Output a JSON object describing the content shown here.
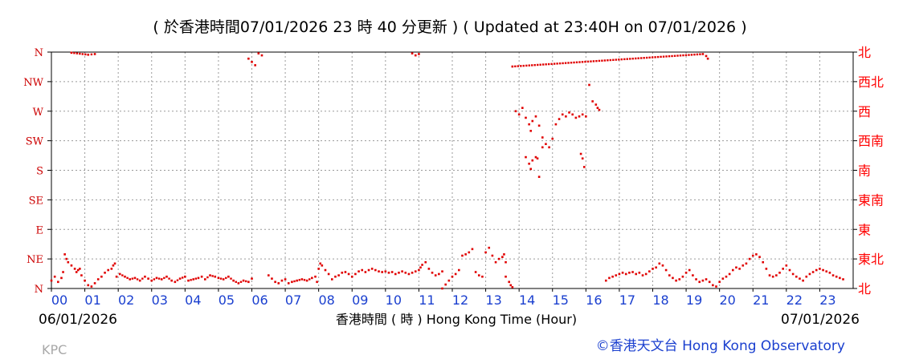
{
  "header": {
    "title": "( 於香港時間07/01/2026 23 時 40 分更新 ) ( Updated at 23:40H on 07/01/2026 )"
  },
  "footer": {
    "start_date": "06/01/2026",
    "end_date": "07/01/2026",
    "xlabel": "香港時間 ( 時 ) Hong Kong Time (Hour)",
    "station": "KPC",
    "credit": "©香港天文台 Hong Kong Observatory"
  },
  "colors": {
    "title": "#000000",
    "data": "#e00000",
    "left_axis_labels": "#cc0000",
    "right_axis_labels": "#ff0000",
    "x_tick_labels": "#1a3fcf",
    "grid": "#9a9a9a",
    "credit": "#1a3fcf",
    "station": "#a8a8a8"
  },
  "chart_data": {
    "type": "scatter",
    "title": "( 於香港時間07/01/2026 23 時 40 分更新 ) ( Updated at 23:40H on 07/01/2026 )",
    "xlabel": "香港時間 ( 時 ) Hong Kong Time (Hour)",
    "ylabel": "",
    "x_unit": "hour of day (Hong Kong Time), 06/01/2026 00:00 to 07/01/2026 24:00",
    "y_unit": "wind direction, degrees from north",
    "xlim": [
      0,
      24
    ],
    "ylim": [
      0,
      360
    ],
    "grid": true,
    "legend": "none",
    "x_ticks": [
      "00",
      "01",
      "02",
      "03",
      "04",
      "05",
      "06",
      "07",
      "08",
      "09",
      "10",
      "11",
      "12",
      "13",
      "14",
      "15",
      "16",
      "17",
      "18",
      "19",
      "20",
      "21",
      "22",
      "23"
    ],
    "y_ticks_left": [
      "N",
      "NE",
      "E",
      "SE",
      "S",
      "SW",
      "W",
      "NW",
      "N"
    ],
    "y_ticks_right": [
      "北",
      "東北",
      "東",
      "東南",
      "南",
      "西南",
      "西",
      "西北",
      "北"
    ],
    "series": [
      {
        "segments": [
          [
            [
              0.0,
              12
            ],
            [
              0.1,
              18
            ],
            [
              0.2,
              10
            ],
            [
              0.3,
              16
            ],
            [
              0.35,
              25
            ],
            [
              0.4,
              52
            ],
            [
              0.45,
              45
            ],
            [
              0.5,
              40
            ],
            [
              0.6,
              35
            ],
            [
              0.7,
              30
            ],
            [
              0.75,
              25
            ],
            [
              0.8,
              28
            ],
            [
              0.85,
              30
            ],
            [
              0.9,
              20
            ],
            [
              1.0,
              12
            ],
            [
              1.1,
              5
            ],
            [
              1.2,
              3
            ],
            [
              1.3,
              8
            ],
            [
              1.4,
              14
            ],
            [
              1.5,
              18
            ],
            [
              1.6,
              24
            ],
            [
              1.7,
              28
            ],
            [
              1.8,
              30
            ],
            [
              1.85,
              35
            ],
            [
              1.9,
              38
            ]
          ],
          [
            [
              1.95,
              18
            ],
            [
              2.05,
              22
            ],
            [
              2.2,
              18
            ],
            [
              2.35,
              14
            ],
            [
              2.5,
              16
            ],
            [
              2.65,
              12
            ],
            [
              2.8,
              18
            ],
            [
              2.9,
              15
            ],
            [
              3.0,
              12
            ],
            [
              3.15,
              16
            ],
            [
              3.3,
              14
            ],
            [
              3.45,
              18
            ],
            [
              3.6,
              12
            ],
            [
              3.7,
              10
            ],
            [
              3.85,
              15
            ],
            [
              4.0,
              18
            ],
            [
              4.1,
              12
            ],
            [
              4.25,
              14
            ],
            [
              4.4,
              16
            ],
            [
              4.5,
              18
            ],
            [
              4.6,
              14
            ],
            [
              4.75,
              20
            ],
            [
              4.9,
              18
            ],
            [
              5.0,
              16
            ],
            [
              5.15,
              14
            ],
            [
              5.3,
              18
            ],
            [
              5.45,
              12
            ],
            [
              5.6,
              8
            ],
            [
              5.75,
              12
            ],
            [
              5.9,
              10
            ],
            [
              6.0,
              15
            ]
          ],
          [
            [
              6.5,
              20
            ],
            [
              6.6,
              15
            ],
            [
              6.7,
              10
            ],
            [
              6.8,
              8
            ],
            [
              6.9,
              12
            ],
            [
              7.0,
              14
            ],
            [
              7.1,
              8
            ],
            [
              7.2,
              10
            ],
            [
              7.35,
              12
            ],
            [
              7.5,
              14
            ],
            [
              7.65,
              12
            ],
            [
              7.8,
              16
            ],
            [
              7.9,
              18
            ],
            [
              7.95,
              10
            ],
            [
              8.0,
              30
            ],
            [
              8.05,
              38
            ],
            [
              8.1,
              35
            ],
            [
              8.2,
              28
            ],
            [
              8.3,
              22
            ],
            [
              8.4,
              14
            ],
            [
              8.5,
              18
            ],
            [
              8.6,
              20
            ],
            [
              8.7,
              24
            ],
            [
              8.8,
              25
            ],
            [
              8.9,
              22
            ],
            [
              9.0,
              18
            ],
            [
              9.1,
              22
            ],
            [
              9.2,
              26
            ],
            [
              9.3,
              28
            ],
            [
              9.4,
              25
            ],
            [
              9.5,
              28
            ],
            [
              9.6,
              30
            ],
            [
              9.7,
              28
            ],
            [
              9.8,
              26
            ],
            [
              9.9,
              25
            ],
            [
              10.0,
              26
            ],
            [
              10.1,
              24
            ],
            [
              10.2,
              25
            ],
            [
              10.3,
              22
            ],
            [
              10.4,
              24
            ],
            [
              10.5,
              26
            ],
            [
              10.6,
              24
            ],
            [
              10.7,
              22
            ],
            [
              10.8,
              24
            ],
            [
              10.9,
              26
            ],
            [
              11.0,
              28
            ],
            [
              11.05,
              32
            ],
            [
              11.1,
              36
            ],
            [
              11.2,
              40
            ],
            [
              11.3,
              30
            ],
            [
              11.4,
              24
            ],
            [
              11.5,
              20
            ],
            [
              11.6,
              22
            ],
            [
              11.7,
              26
            ]
          ],
          [
            [
              11.7,
              0
            ],
            [
              11.8,
              6
            ],
            [
              11.9,
              12
            ],
            [
              12.0,
              18
            ],
            [
              12.1,
              22
            ],
            [
              12.2,
              28
            ],
            [
              12.3,
              50
            ],
            [
              12.4,
              52
            ],
            [
              12.5,
              55
            ],
            [
              12.6,
              60
            ]
          ],
          [
            [
              12.7,
              25
            ],
            [
              12.8,
              20
            ],
            [
              12.9,
              18
            ],
            [
              13.0,
              55
            ],
            [
              13.1,
              62
            ],
            [
              13.2,
              50
            ],
            [
              13.3,
              40
            ],
            [
              13.4,
              45
            ],
            [
              13.5,
              48
            ],
            [
              13.55,
              52
            ],
            [
              13.6,
              40
            ]
          ],
          [
            [
              13.6,
              18
            ],
            [
              13.7,
              10
            ],
            [
              13.75,
              5
            ],
            [
              13.8,
              2
            ]
          ],
          [
            [
              16.6,
              12
            ],
            [
              16.7,
              16
            ],
            [
              16.8,
              18
            ],
            [
              16.9,
              20
            ],
            [
              17.0,
              22
            ],
            [
              17.1,
              24
            ],
            [
              17.2,
              22
            ],
            [
              17.3,
              24
            ],
            [
              17.4,
              25
            ],
            [
              17.5,
              22
            ],
            [
              17.6,
              24
            ],
            [
              17.7,
              20
            ],
            [
              17.8,
              22
            ],
            [
              17.9,
              26
            ],
            [
              18.0,
              30
            ],
            [
              18.1,
              32
            ],
            [
              18.2,
              38
            ],
            [
              18.3,
              35
            ],
            [
              18.4,
              28
            ],
            [
              18.5,
              20
            ],
            [
              18.6,
              16
            ],
            [
              18.7,
              12
            ],
            [
              18.8,
              14
            ],
            [
              18.9,
              18
            ],
            [
              19.0,
              24
            ],
            [
              19.1,
              28
            ],
            [
              19.2,
              20
            ],
            [
              19.3,
              14
            ],
            [
              19.4,
              10
            ],
            [
              19.5,
              12
            ],
            [
              19.6,
              14
            ],
            [
              19.7,
              10
            ],
            [
              19.8,
              5
            ],
            [
              19.9,
              3
            ],
            [
              20.0,
              10
            ],
            [
              20.1,
              15
            ],
            [
              20.2,
              18
            ],
            [
              20.3,
              22
            ],
            [
              20.4,
              28
            ],
            [
              20.5,
              32
            ],
            [
              20.6,
              30
            ],
            [
              20.7,
              35
            ],
            [
              20.8,
              38
            ],
            [
              20.9,
              45
            ],
            [
              21.0,
              50
            ],
            [
              21.1,
              52
            ],
            [
              21.2,
              48
            ],
            [
              21.3,
              40
            ],
            [
              21.4,
              30
            ],
            [
              21.5,
              20
            ],
            [
              21.6,
              18
            ],
            [
              21.7,
              20
            ],
            [
              21.8,
              24
            ],
            [
              21.9,
              30
            ],
            [
              22.0,
              35
            ],
            [
              22.1,
              28
            ],
            [
              22.2,
              22
            ],
            [
              22.3,
              18
            ],
            [
              22.4,
              15
            ],
            [
              22.5,
              12
            ],
            [
              22.6,
              18
            ],
            [
              22.7,
              22
            ],
            [
              22.8,
              25
            ],
            [
              22.9,
              28
            ],
            [
              23.0,
              30
            ],
            [
              23.1,
              28
            ],
            [
              23.2,
              26
            ],
            [
              23.3,
              24
            ],
            [
              23.4,
              20
            ],
            [
              23.5,
              18
            ],
            [
              23.6,
              16
            ],
            [
              23.7,
              14
            ]
          ],
          [
            [
              0.6,
              359
            ],
            [
              1.1,
              356
            ],
            [
              1.3,
              357
            ]
          ],
          [
            [
              5.9,
              350
            ],
            [
              6.0,
              345
            ],
            [
              6.1,
              340
            ],
            [
              6.2,
              358
            ],
            [
              6.3,
              355
            ]
          ],
          [
            [
              10.8,
              358
            ],
            [
              10.9,
              355
            ],
            [
              11.0,
              357
            ]
          ],
          [
            [
              13.8,
              338
            ],
            [
              19.5,
              357
            ],
            [
              19.6,
              354
            ],
            [
              19.65,
              350
            ]
          ],
          [
            [
              13.9,
              270
            ],
            [
              14.0,
              265
            ],
            [
              14.1,
              275
            ],
            [
              14.2,
              260
            ],
            [
              14.3,
              250
            ],
            [
              14.35,
              240
            ],
            [
              14.4,
              255
            ],
            [
              14.5,
              262
            ],
            [
              14.6,
              248
            ],
            [
              14.7,
              230
            ],
            [
              14.8,
              220
            ],
            [
              14.9,
              215
            ],
            [
              15.0,
              228
            ],
            [
              15.1,
              250
            ],
            [
              15.2,
              258
            ],
            [
              15.3,
              265
            ],
            [
              15.4,
              262
            ],
            [
              15.5,
              268
            ],
            [
              15.6,
              265
            ],
            [
              15.7,
              260
            ],
            [
              15.8,
              262
            ],
            [
              15.9,
              265
            ],
            [
              16.0,
              262
            ]
          ],
          [
            [
              14.2,
              200
            ],
            [
              14.3,
              190
            ],
            [
              14.35,
              182
            ],
            [
              14.4,
              195
            ],
            [
              14.5,
              200
            ],
            [
              14.55,
              198
            ],
            [
              14.6,
              170
            ],
            [
              14.7,
              215
            ]
          ],
          [
            [
              16.1,
              310
            ],
            [
              16.2,
              285
            ],
            [
              16.3,
              280
            ],
            [
              16.35,
              275
            ],
            [
              16.4,
              272
            ]
          ],
          [
            [
              15.85,
              205
            ],
            [
              15.9,
              198
            ],
            [
              15.95,
              185
            ]
          ]
        ]
      }
    ]
  }
}
